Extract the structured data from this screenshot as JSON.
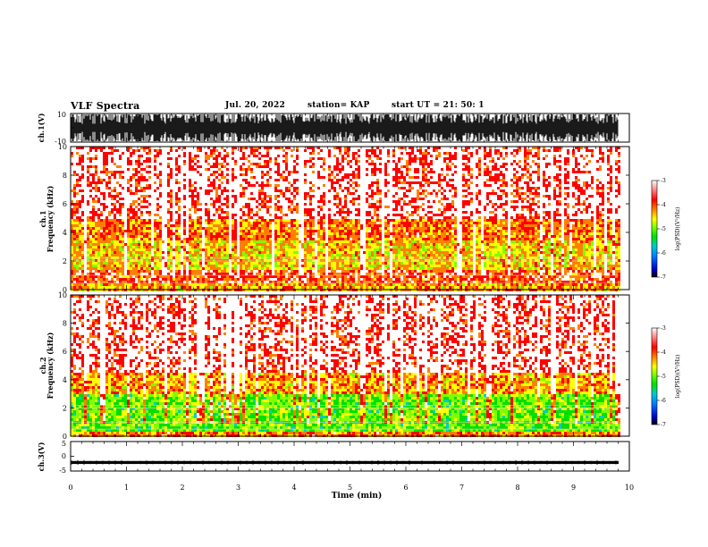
{
  "header": {
    "title": "VLF Spectra",
    "date": "Jul. 20, 2022",
    "station": "station= KAP",
    "start_ut": "start  UT =   21: 50: 1"
  },
  "colors": {
    "colormap": [
      "#000000",
      "#0000cc",
      "#0080ff",
      "#00cccc",
      "#00e000",
      "#80ff00",
      "#ffff00",
      "#ff8000",
      "#ff0000",
      "#ffffff"
    ],
    "trace": "#000000"
  },
  "chart_data": [
    {
      "type": "line",
      "panel": "ch1-waveform",
      "ylabel": "ch.1(V)",
      "ylim": [
        -10,
        10
      ],
      "ytick_labels": [
        "10",
        "-10"
      ],
      "xlim": [
        0,
        10
      ],
      "description_values": {
        "amplitude_peak_V": 10,
        "baseline_V": 0
      }
    },
    {
      "type": "heatmap",
      "panel": "ch1-spectrogram",
      "ylabel": "ch.1\nFrequency (kHz)",
      "ylim": [
        0,
        10
      ],
      "ytick_labels": [
        "0",
        "2",
        "4",
        "6",
        "8",
        "10"
      ],
      "xlim": [
        0,
        10
      ],
      "colorbar": {
        "label": "log(PSD)(V²/Hz)",
        "range": [
          -7,
          -3
        ],
        "tick_labels": [
          "-3",
          "-4",
          "-5",
          "-6",
          "-7"
        ]
      },
      "band_levels": [
        {
          "freq_kHz": [
            0,
            0.5
          ],
          "log_psd": -4.0
        },
        {
          "freq_kHz": [
            0.5,
            1.5
          ],
          "log_psd": -3.6
        },
        {
          "freq_kHz": [
            1.5,
            3.5
          ],
          "log_psd": -4.2
        },
        {
          "freq_kHz": [
            3.5,
            5.0
          ],
          "log_psd": -3.8
        },
        {
          "freq_kHz": [
            5.0,
            10.0
          ],
          "log_psd": -3.2
        }
      ]
    },
    {
      "type": "heatmap",
      "panel": "ch2-spectrogram",
      "ylabel": "ch.2\nFrequency (kHz)",
      "ylim": [
        0,
        10
      ],
      "ytick_labels": [
        "0",
        "2",
        "4",
        "6",
        "8",
        "10"
      ],
      "xlim": [
        0,
        10
      ],
      "colorbar": {
        "label": "log(PSD)(V²/Hz)",
        "range": [
          -7,
          -3
        ],
        "tick_labels": [
          "-3",
          "-4",
          "-5",
          "-6",
          "-7"
        ]
      },
      "band_levels": [
        {
          "freq_kHz": [
            0,
            0.5
          ],
          "log_psd": -3.8
        },
        {
          "freq_kHz": [
            0.5,
            3.0
          ],
          "log_psd": -4.9
        },
        {
          "freq_kHz": [
            3.0,
            4.5
          ],
          "log_psd": -4.0
        },
        {
          "freq_kHz": [
            4.5,
            10.0
          ],
          "log_psd": -3.2
        }
      ]
    },
    {
      "type": "line",
      "panel": "ch3-waveform",
      "ylabel": "ch.3(V)",
      "ylim": [
        -5,
        5
      ],
      "ytick_labels": [
        "5",
        "0",
        "-5"
      ],
      "xlim": [
        0,
        10
      ],
      "xlabel": "Time (min)",
      "xtick_labels": [
        "0",
        "1",
        "2",
        "3",
        "4",
        "5",
        "6",
        "7",
        "8",
        "9",
        "10"
      ],
      "description_values": {
        "trace_center_V": -2.1,
        "trace_halfwidth_V": 0.5
      }
    }
  ]
}
